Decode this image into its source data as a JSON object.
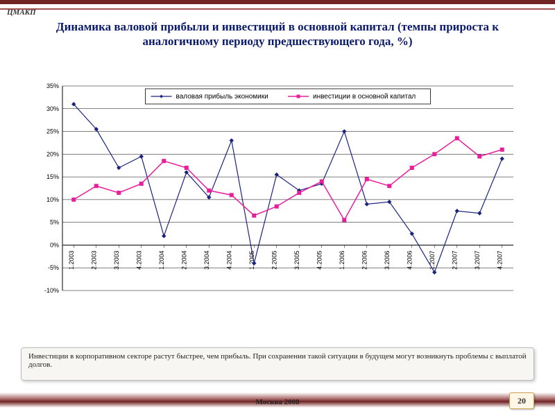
{
  "logo_top": "ЦМАКП",
  "title": "Динамика валовой прибыли и инвестиций в основной капитал (темпы прироста к аналогичному периоду предшествующего года, %)",
  "note": "Инвестиции в корпоративном секторе растут быстрее, чем прибыль. При сохранении такой ситуации в будущем могут возникнуть проблемы с выплатой долгов.",
  "footer": "Москва 2008",
  "page_number": "20",
  "chart": {
    "type": "line",
    "background_color": "#ffffff",
    "grid_color": "#000000",
    "axis_color": "#000000",
    "axis_fontsize": 9,
    "ylim": [
      -10,
      35
    ],
    "ytick_step": 5,
    "ytick_suffix": "%",
    "x_labels": [
      "1.2003",
      "2.2003",
      "3.2003",
      "4.2003",
      "1.2004",
      "2.2004",
      "3.2004",
      "4.2004",
      "1.2005",
      "2.2005",
      "3.2005",
      "4.2005",
      "1.2006",
      "2.2006",
      "3.2006",
      "4.2006",
      "1.2007",
      "2.2007",
      "3.2007",
      "4.2007"
    ],
    "legend": {
      "position": "top-center",
      "border_color": "#000000",
      "fill": "#ffffff",
      "fontsize": 10
    },
    "series": [
      {
        "name": "валовая прибыль экономики",
        "color": "#1a237e",
        "marker": "diamond",
        "marker_size": 5,
        "line_width": 1.2,
        "values": [
          31,
          25.5,
          17,
          19.5,
          2,
          16,
          10.5,
          23,
          -4,
          15.5,
          12,
          13.5,
          25,
          9,
          9.5,
          2.5,
          -6,
          7.5,
          7,
          19
        ]
      },
      {
        "name": "инвестиции в основной капитал",
        "color": "#e91e9b",
        "marker": "square",
        "marker_size": 5,
        "line_width": 1.5,
        "values": [
          10,
          13,
          11.5,
          13.5,
          18.5,
          17,
          12,
          11,
          6.5,
          8.5,
          11.5,
          14,
          5.5,
          14.5,
          13,
          17,
          20,
          23.5,
          19.5,
          21
        ]
      }
    ]
  }
}
